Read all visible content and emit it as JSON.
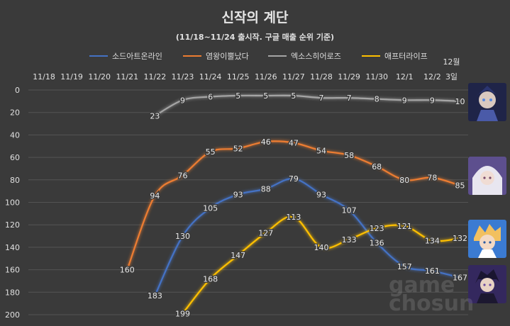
{
  "chart_data": {
    "type": "line",
    "title": "신작의 계단",
    "subtitle": "(11/18~11/24 출시작. 구글 매출 순위 기준)",
    "categories": [
      "11/18",
      "11/19",
      "11/20",
      "11/21",
      "11/22",
      "11/23",
      "11/24",
      "11/25",
      "11/26",
      "11/27",
      "11/28",
      "11/29",
      "11/30",
      "12/1",
      "12/2",
      "12월 3일"
    ],
    "y_ticks": [
      0,
      20,
      40,
      60,
      80,
      100,
      120,
      140,
      160,
      180,
      200
    ],
    "ylim": [
      0,
      200
    ],
    "y_inverted": true,
    "grid": "horizontal",
    "legend_position": "top",
    "series": [
      {
        "name": "소드아트온라인",
        "color": "#4472c4",
        "values": [
          null,
          null,
          null,
          null,
          183,
          130,
          105,
          93,
          88,
          79,
          93,
          107,
          136,
          157,
          161,
          167
        ]
      },
      {
        "name": "염왕이뿔났다",
        "color": "#ed7d31",
        "values": [
          null,
          null,
          null,
          160,
          94,
          76,
          55,
          52,
          46,
          47,
          54,
          58,
          68,
          80,
          78,
          85
        ]
      },
      {
        "name": "엑소스히어로즈",
        "color": "#a5a5a5",
        "values": [
          null,
          null,
          null,
          null,
          23,
          9,
          6,
          5,
          5,
          5,
          7,
          7,
          8,
          9,
          9,
          10
        ]
      },
      {
        "name": "애프터라이프",
        "color": "#ffc000",
        "values": [
          null,
          null,
          null,
          null,
          null,
          199,
          168,
          147,
          127,
          113,
          140,
          133,
          123,
          121,
          134,
          132
        ]
      }
    ]
  },
  "watermark": {
    "line1": "game",
    "line2": "chosun"
  },
  "avatars": [
    {
      "name": "엑소스히어로즈",
      "bg": "#2a2f5a",
      "accent": "#8fa0e0"
    },
    {
      "name": "염왕이뿔났다",
      "bg": "#6a5a9a",
      "accent": "#e8e6f0"
    },
    {
      "name": "애프터라이프",
      "bg": "#3a7ad0",
      "accent": "#f2c060"
    },
    {
      "name": "소드아트온라인",
      "bg": "#3a2e6a",
      "accent": "#b07ad0"
    }
  ]
}
